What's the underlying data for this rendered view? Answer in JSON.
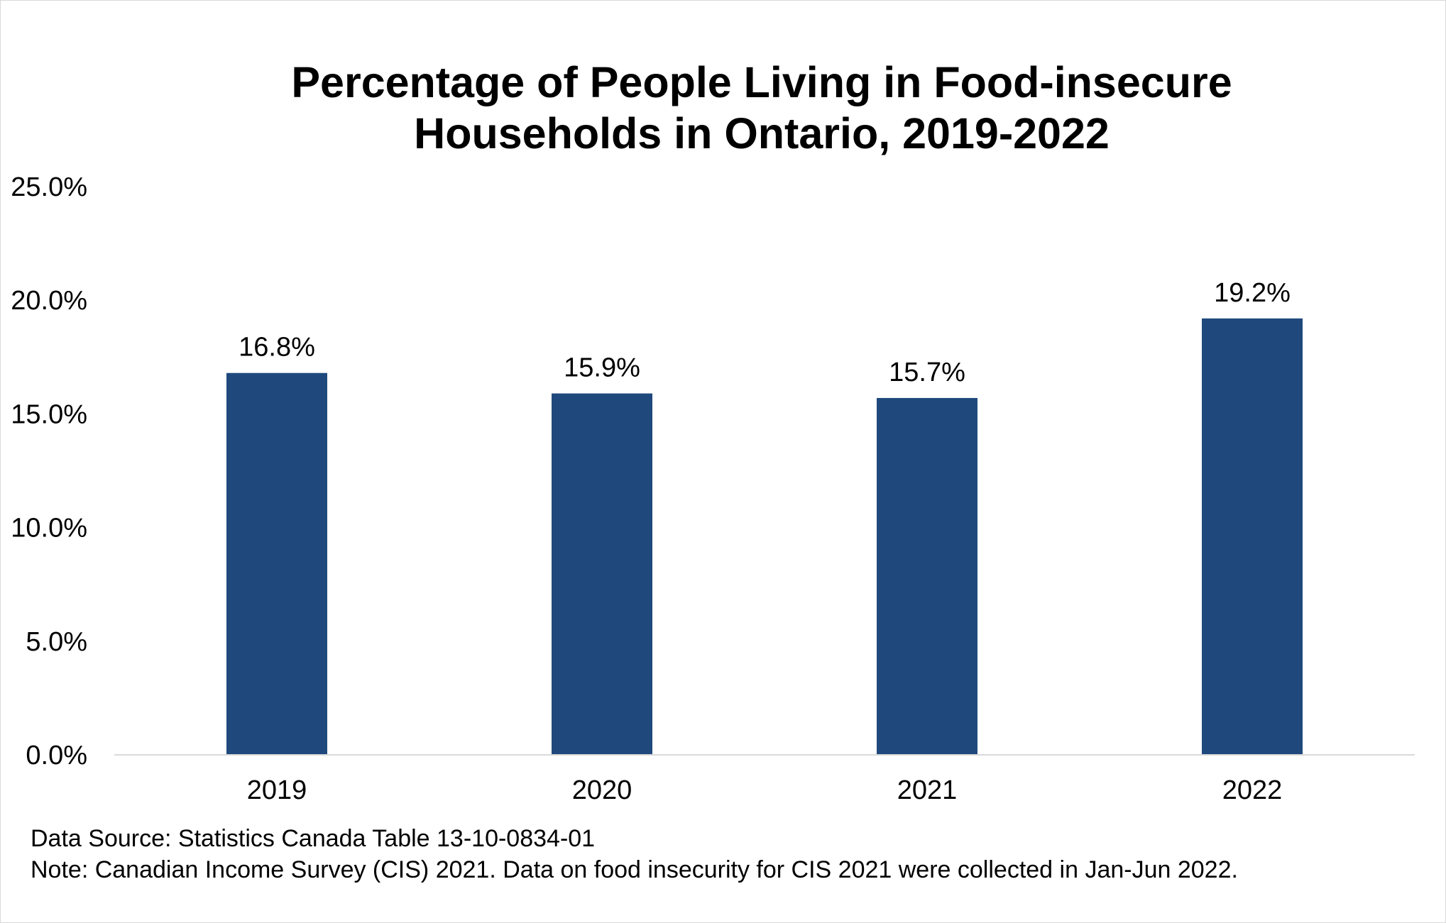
{
  "chart_data": {
    "type": "bar",
    "title": "Percentage of People Living in Food-insecure Households in Ontario, 2019-2022",
    "title_lines": [
      "Percentage of People Living in Food-insecure",
      "Households in Ontario, 2019-2022"
    ],
    "categories": [
      "2019",
      "2020",
      "2021",
      "2022"
    ],
    "values": [
      16.8,
      15.9,
      15.7,
      19.2
    ],
    "data_labels": [
      "16.8%",
      "15.9%",
      "15.7%",
      "19.2%"
    ],
    "xlabel": "",
    "ylabel": "",
    "ylim": [
      0,
      25
    ],
    "yticks": [
      0,
      5,
      10,
      15,
      20,
      25
    ],
    "ytick_labels": [
      "0.0%",
      "5.0%",
      "10.0%",
      "15.0%",
      "20.0%",
      "25.0%"
    ],
    "grid": false,
    "legend": "none",
    "bar_color": "#1f497d",
    "axis_color": "#d9d9d9"
  },
  "footnotes": {
    "source": "Data Source: Statistics Canada Table 13-10-0834-01",
    "note": "Note: Canadian Income Survey (CIS) 2021. Data on food insecurity for CIS 2021 were collected in Jan-Jun 2022."
  }
}
